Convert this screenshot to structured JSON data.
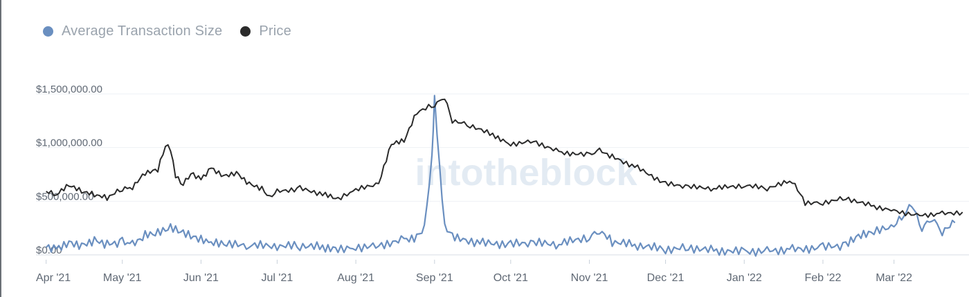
{
  "legend": {
    "items": [
      {
        "label": "Average Transaction Size",
        "color": "#6a8fc0",
        "icon": "blue-dot-icon"
      },
      {
        "label": "Price",
        "color": "#2b2b2b",
        "icon": "black-dot-icon"
      }
    ]
  },
  "watermark": "intotheblock",
  "chart_data": {
    "type": "line",
    "x_tick_labels": [
      "Apr '21",
      "May '21",
      "Jun '21",
      "Jul '21",
      "Aug '21",
      "Sep '21",
      "Oct '21",
      "Nov '21",
      "Dec '21",
      "Jan '22",
      "Feb '22",
      "Mar '22"
    ],
    "y_tick_labels": [
      "$0.00",
      "$500,000.00",
      "$1,000,000.00",
      "$1,500,000.00"
    ],
    "ylim": [
      0,
      1500000
    ],
    "y_scale_note": "left axis is for Average Transaction Size; Price series drawn on its own unlabeled scale",
    "grid": true,
    "legend_position": "top-left",
    "series": [
      {
        "name": "Average Transaction Size",
        "color": "#6a8fc0",
        "points": [
          [
            "2021-04-01",
            80000
          ],
          [
            "2021-04-05",
            60000
          ],
          [
            "2021-04-10",
            120000
          ],
          [
            "2021-04-15",
            90000
          ],
          [
            "2021-04-20",
            140000
          ],
          [
            "2021-04-25",
            100000
          ],
          [
            "2021-05-01",
            120000
          ],
          [
            "2021-05-05",
            90000
          ],
          [
            "2021-05-10",
            180000
          ],
          [
            "2021-05-15",
            200000
          ],
          [
            "2021-05-20",
            250000
          ],
          [
            "2021-05-25",
            200000
          ],
          [
            "2021-05-30",
            150000
          ],
          [
            "2021-06-05",
            110000
          ],
          [
            "2021-06-10",
            95000
          ],
          [
            "2021-06-20",
            90000
          ],
          [
            "2021-07-01",
            80000
          ],
          [
            "2021-07-10",
            85000
          ],
          [
            "2021-07-20",
            70000
          ],
          [
            "2021-07-25",
            60000
          ],
          [
            "2021-08-01",
            70000
          ],
          [
            "2021-08-10",
            90000
          ],
          [
            "2021-08-20",
            140000
          ],
          [
            "2021-08-25",
            170000
          ],
          [
            "2021-08-28",
            250000
          ],
          [
            "2021-08-31",
            900000
          ],
          [
            "2021-09-01",
            1450000
          ],
          [
            "2021-09-03",
            800000
          ],
          [
            "2021-09-05",
            250000
          ],
          [
            "2021-09-10",
            150000
          ],
          [
            "2021-09-20",
            110000
          ],
          [
            "2021-10-01",
            100000
          ],
          [
            "2021-10-10",
            110000
          ],
          [
            "2021-10-20",
            100000
          ],
          [
            "2021-11-01",
            170000
          ],
          [
            "2021-11-05",
            230000
          ],
          [
            "2021-11-10",
            120000
          ],
          [
            "2021-11-20",
            90000
          ],
          [
            "2021-12-01",
            50000
          ],
          [
            "2021-12-10",
            70000
          ],
          [
            "2021-12-20",
            40000
          ],
          [
            "2022-01-01",
            30000
          ],
          [
            "2022-01-10",
            40000
          ],
          [
            "2022-01-20",
            50000
          ],
          [
            "2022-02-01",
            70000
          ],
          [
            "2022-02-10",
            90000
          ],
          [
            "2022-02-15",
            170000
          ],
          [
            "2022-02-20",
            200000
          ],
          [
            "2022-03-01",
            270000
          ],
          [
            "2022-03-05",
            380000
          ],
          [
            "2022-03-08",
            470000
          ],
          [
            "2022-03-12",
            250000
          ],
          [
            "2022-03-16",
            350000
          ],
          [
            "2022-03-20",
            220000
          ],
          [
            "2022-03-25",
            300000
          ]
        ]
      },
      {
        "name": "Price",
        "color": "#2b2b2b",
        "points": [
          [
            "2021-04-01",
            0.4
          ],
          [
            "2021-04-05",
            0.38
          ],
          [
            "2021-04-10",
            0.44
          ],
          [
            "2021-04-15",
            0.4
          ],
          [
            "2021-04-20",
            0.38
          ],
          [
            "2021-04-25",
            0.36
          ],
          [
            "2021-05-01",
            0.42
          ],
          [
            "2021-05-05",
            0.43
          ],
          [
            "2021-05-10",
            0.52
          ],
          [
            "2021-05-15",
            0.54
          ],
          [
            "2021-05-18",
            0.7
          ],
          [
            "2021-05-20",
            0.67
          ],
          [
            "2021-05-22",
            0.5
          ],
          [
            "2021-05-25",
            0.45
          ],
          [
            "2021-05-28",
            0.52
          ],
          [
            "2021-06-01",
            0.48
          ],
          [
            "2021-06-05",
            0.55
          ],
          [
            "2021-06-10",
            0.5
          ],
          [
            "2021-06-15",
            0.52
          ],
          [
            "2021-06-20",
            0.45
          ],
          [
            "2021-06-25",
            0.42
          ],
          [
            "2021-06-28",
            0.36
          ],
          [
            "2021-07-01",
            0.4
          ],
          [
            "2021-07-10",
            0.42
          ],
          [
            "2021-07-20",
            0.38
          ],
          [
            "2021-07-25",
            0.35
          ],
          [
            "2021-08-01",
            0.41
          ],
          [
            "2021-08-10",
            0.45
          ],
          [
            "2021-08-15",
            0.7
          ],
          [
            "2021-08-20",
            0.72
          ],
          [
            "2021-08-25",
            0.9
          ],
          [
            "2021-09-01",
            0.95
          ],
          [
            "2021-09-05",
            1.0
          ],
          [
            "2021-09-08",
            0.85
          ],
          [
            "2021-09-15",
            0.82
          ],
          [
            "2021-09-25",
            0.75
          ],
          [
            "2021-10-01",
            0.7
          ],
          [
            "2021-10-10",
            0.72
          ],
          [
            "2021-10-20",
            0.65
          ],
          [
            "2021-11-01",
            0.63
          ],
          [
            "2021-11-05",
            0.66
          ],
          [
            "2021-11-10",
            0.62
          ],
          [
            "2021-11-20",
            0.55
          ],
          [
            "2021-12-01",
            0.45
          ],
          [
            "2021-12-10",
            0.43
          ],
          [
            "2021-12-20",
            0.42
          ],
          [
            "2022-01-01",
            0.44
          ],
          [
            "2022-01-10",
            0.42
          ],
          [
            "2022-01-20",
            0.47
          ],
          [
            "2022-01-25",
            0.33
          ],
          [
            "2022-02-01",
            0.33
          ],
          [
            "2022-02-10",
            0.36
          ],
          [
            "2022-02-20",
            0.31
          ],
          [
            "2022-03-01",
            0.28
          ],
          [
            "2022-03-10",
            0.25
          ],
          [
            "2022-03-20",
            0.26
          ],
          [
            "2022-03-28",
            0.27
          ]
        ]
      }
    ]
  }
}
